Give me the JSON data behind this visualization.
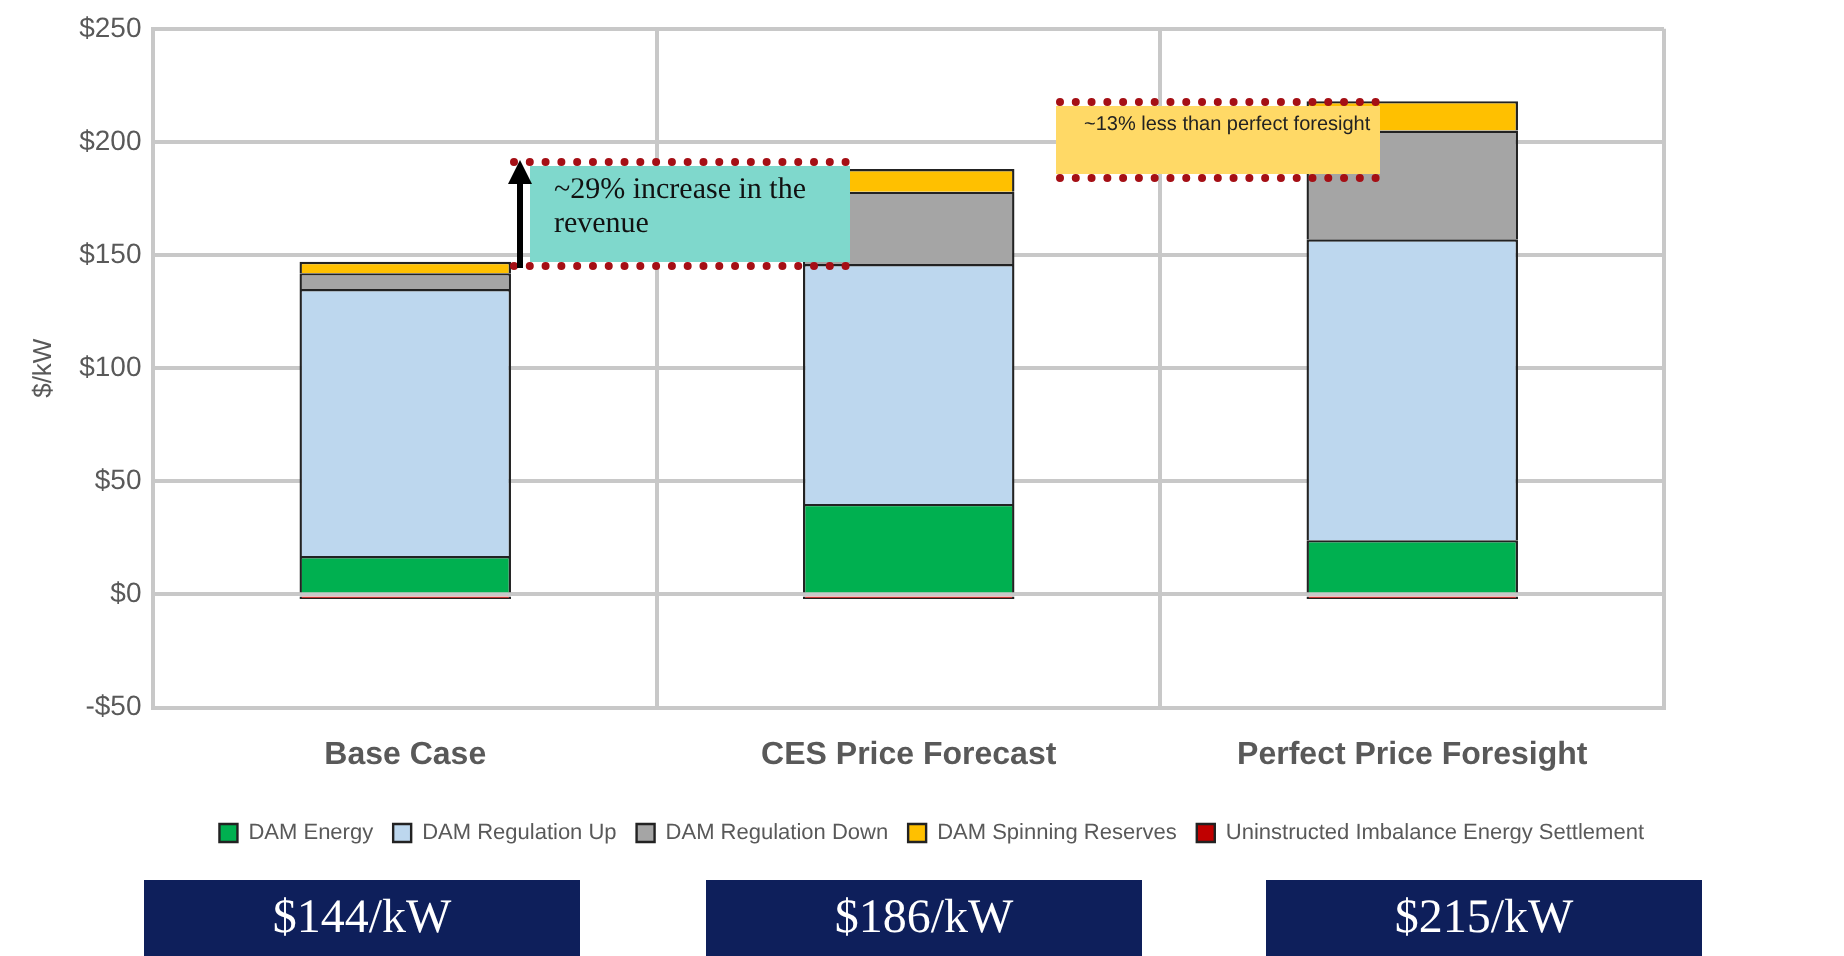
{
  "chart_data": {
    "type": "bar",
    "stacked": true,
    "ylabel": "$/kW",
    "categories": [
      "Base Case",
      "CES Price Forecast",
      "Perfect Price Foresight"
    ],
    "series": [
      {
        "name": "DAM Energy",
        "color": "#00b050",
        "values": [
          17,
          40,
          24
        ]
      },
      {
        "name": "DAM Regulation Up",
        "color": "#bdd7ee",
        "values": [
          118,
          106,
          133
        ]
      },
      {
        "name": "DAM Regulation Down",
        "color": "#a5a5a5",
        "values": [
          7,
          32,
          48
        ]
      },
      {
        "name": "DAM Spinning Reserves",
        "color": "#ffc000",
        "values": [
          5,
          10,
          13
        ]
      },
      {
        "name": "Uninstructed Imbalance Energy Settlement",
        "color": "#c00000",
        "values": [
          -2,
          -2,
          -2
        ]
      }
    ],
    "ylim": [
      -50,
      250
    ],
    "yticks": [
      {
        "value": -50,
        "label": "-$50"
      },
      {
        "value": 0,
        "label": "$0"
      },
      {
        "value": 50,
        "label": "$50"
      },
      {
        "value": 100,
        "label": "$100"
      },
      {
        "value": 150,
        "label": "$150"
      },
      {
        "value": 200,
        "label": "$200"
      },
      {
        "value": 250,
        "label": "$250"
      }
    ],
    "grid": true,
    "legend": "bottom",
    "annotations": [
      "~29% increase in the revenue",
      "~13% less than perfect foresight",
      "$144/kW",
      "$186/kW",
      "$215/kW"
    ]
  }
}
